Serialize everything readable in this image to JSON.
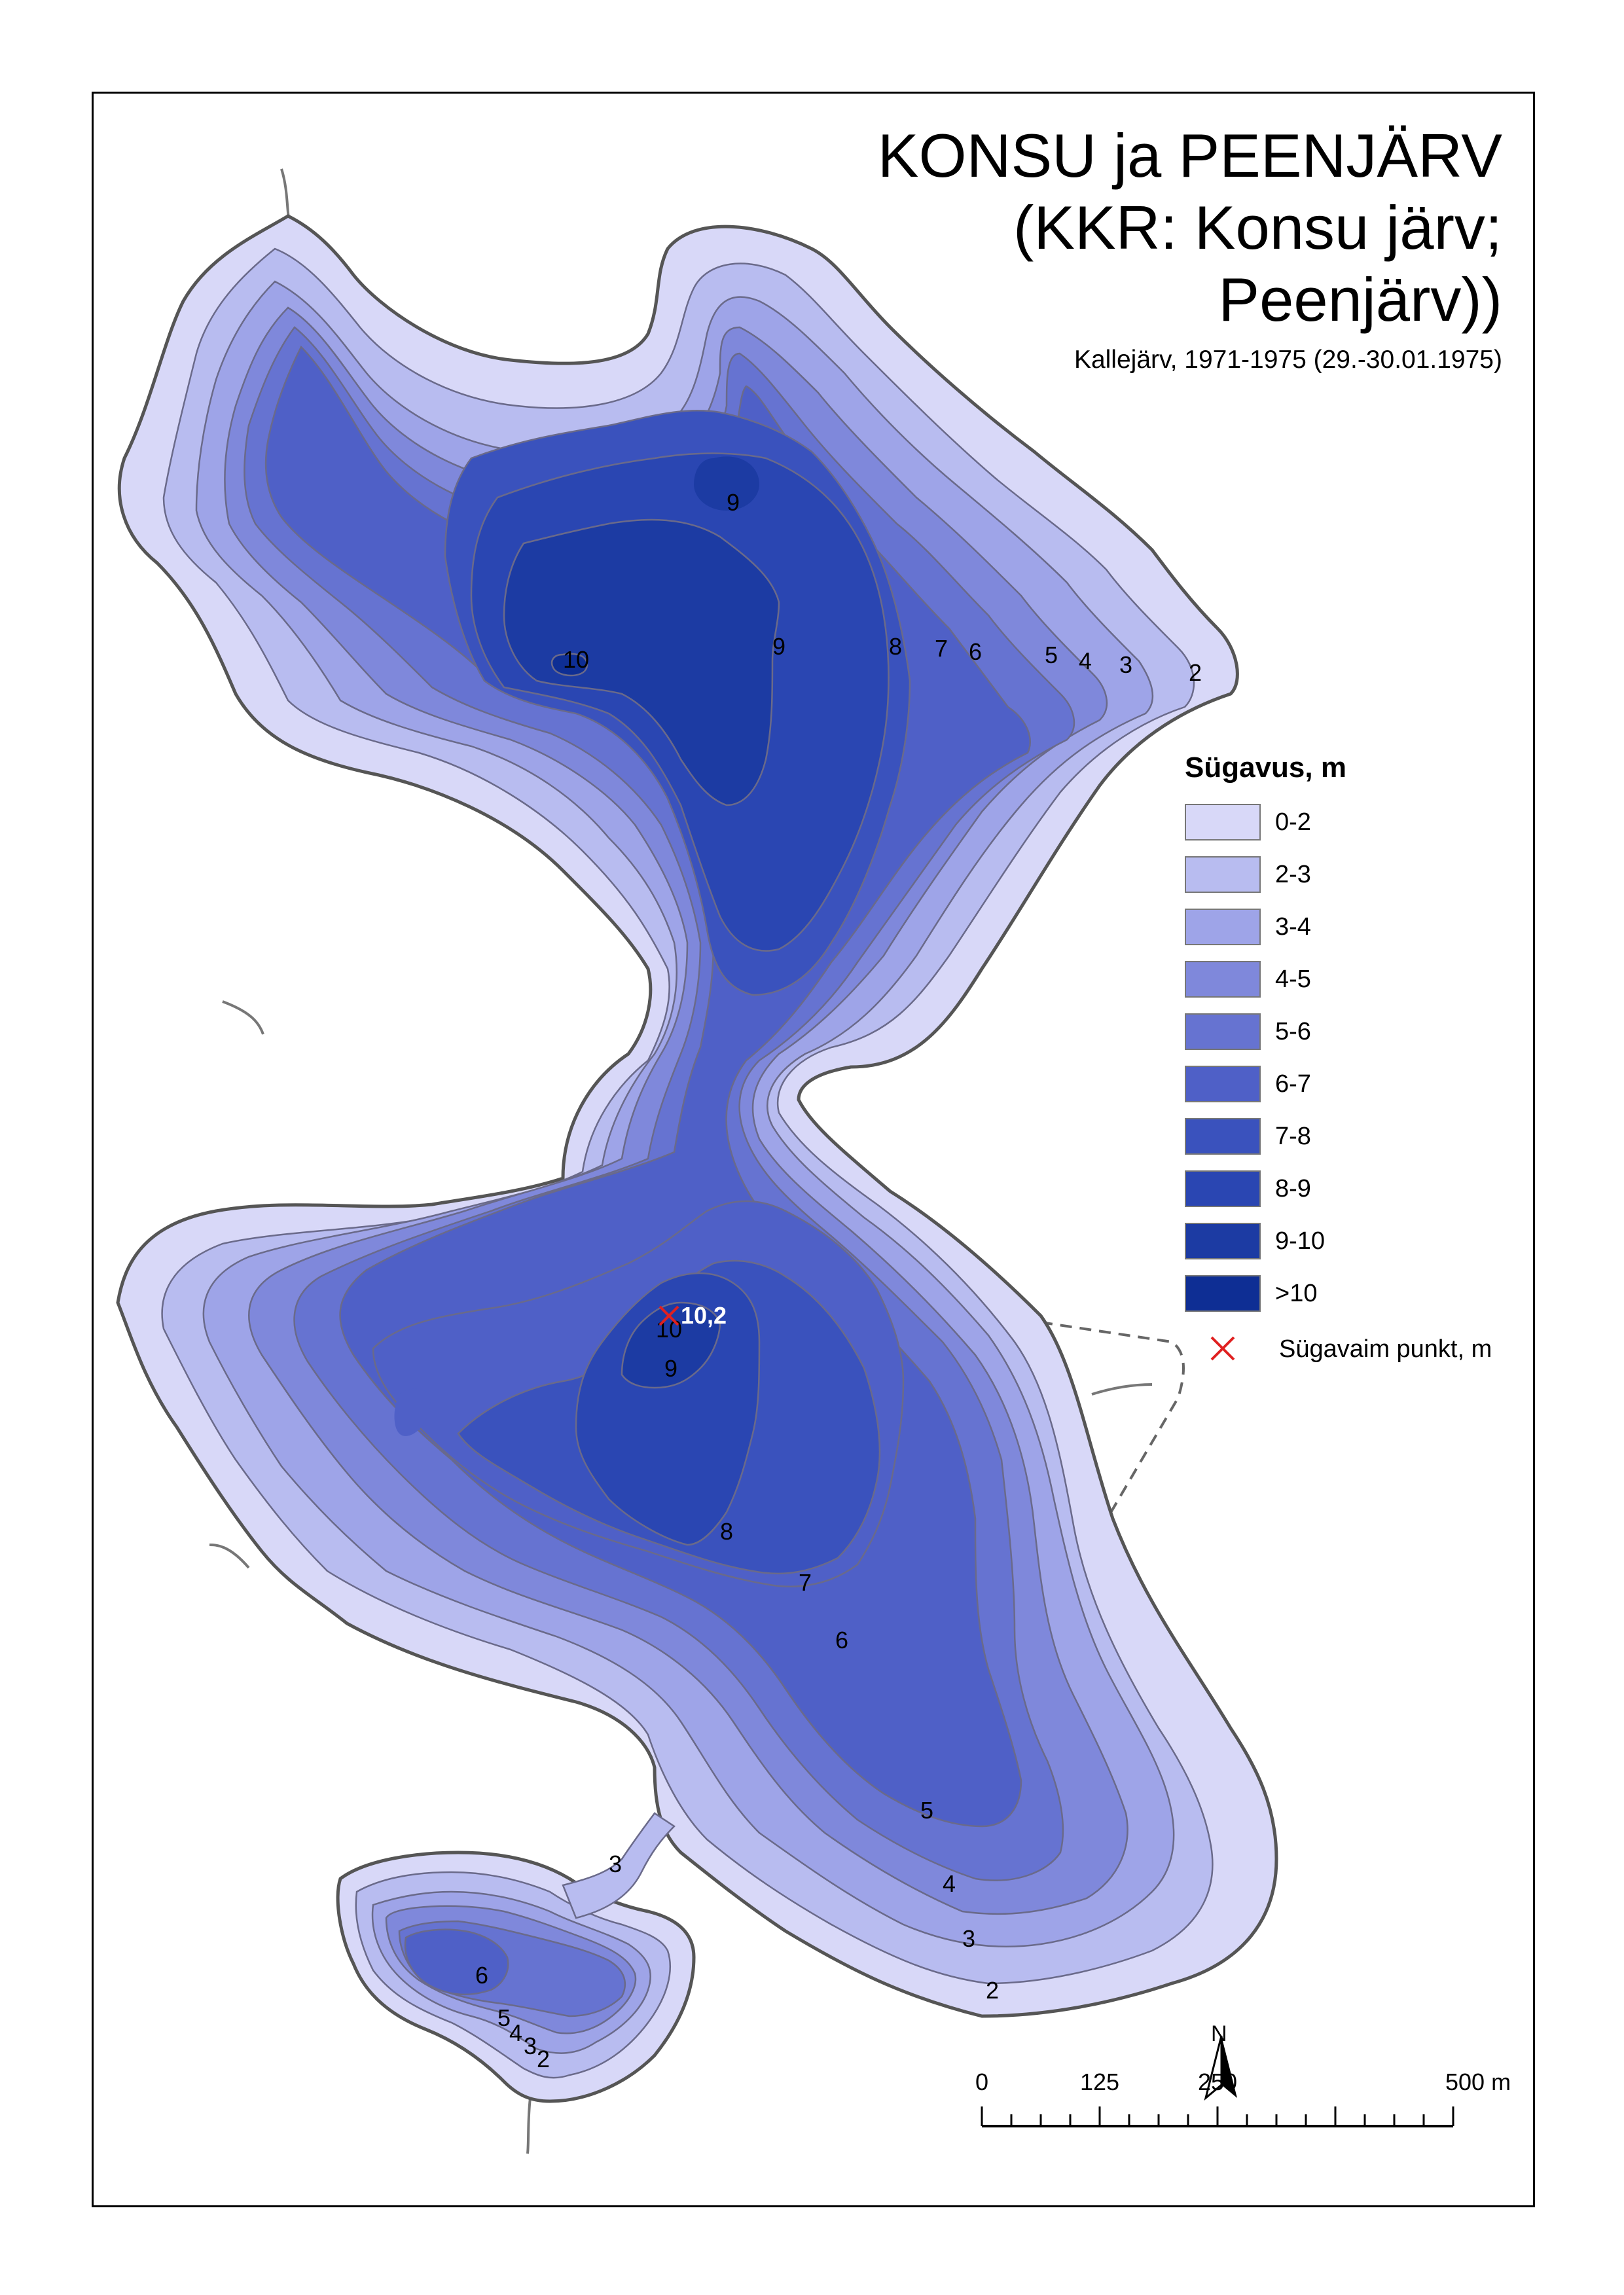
{
  "map": {
    "title_lines": [
      "KONSU ja PEENJÄRV",
      "(KKR: Konsu järv;",
      "Peenjärv))"
    ],
    "subtitle": "Kallejärv, 1971-1975 (29.-30.01.1975)"
  },
  "legend": {
    "title": "Sügavus, m",
    "items": [
      {
        "label": "0-2",
        "color": "#d8d8f8"
      },
      {
        "label": "2-3",
        "color": "#b8bcf0"
      },
      {
        "label": "3-4",
        "color": "#9ea4e8"
      },
      {
        "label": "4-5",
        "color": "#7f88db"
      },
      {
        "label": "5-6",
        "color": "#6673d1"
      },
      {
        "label": "6-7",
        "color": "#4f60c7"
      },
      {
        "label": "7-8",
        "color": "#3a52bd"
      },
      {
        "label": "8-9",
        "color": "#2a46b2"
      },
      {
        "label": "9-10",
        "color": "#1c3ba3"
      },
      {
        "label": ">10",
        "color": "#0e2e94"
      }
    ],
    "deepest_point": {
      "label": "Sügavaim punkt, m",
      "color": "#e02020"
    }
  },
  "deepest_value": "10,2",
  "contour_labels": {
    "north": [
      "9",
      "10",
      "9",
      "8",
      "7",
      "6",
      "5",
      "4",
      "3",
      "2"
    ],
    "south": [
      "10",
      "9",
      "8",
      "7",
      "6",
      "5",
      "4",
      "3",
      "2"
    ],
    "small": [
      "3",
      "6",
      "5",
      "4",
      "3",
      "2"
    ]
  },
  "scale_bar": {
    "labels": [
      "0",
      "125",
      "250",
      "500 m"
    ],
    "ticks_m": [
      0,
      125,
      250,
      500
    ]
  },
  "north_arrow": {
    "label": "N"
  }
}
